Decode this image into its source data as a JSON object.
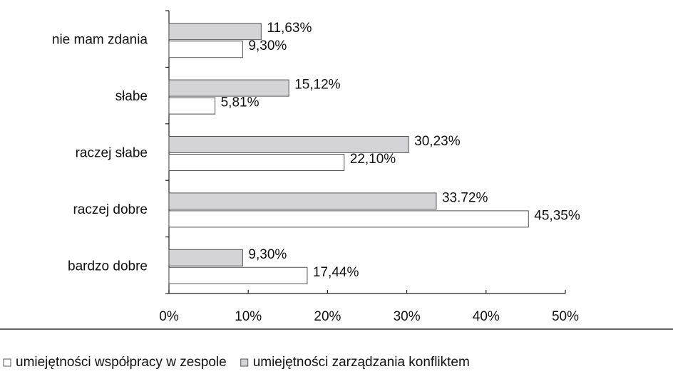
{
  "chart_data": {
    "type": "bar",
    "orientation": "horizontal",
    "categories": [
      "nie mam zdania",
      "słabe",
      "raczej słabe",
      "raczej dobre",
      "bardzo dobre"
    ],
    "series": [
      {
        "name": "umiejętności współpracy w zespole",
        "color": "#ffffff",
        "values": [
          9.3,
          5.81,
          22.1,
          45.35,
          17.44
        ],
        "value_labels": [
          "9,30%",
          "5,81%",
          "22,10%",
          "45,35%",
          "17,44%"
        ]
      },
      {
        "name": "umiejętności zarządzania konfliktem",
        "color": "#d4d4d8",
        "values": [
          11.63,
          15.12,
          30.23,
          33.72,
          9.3
        ],
        "value_labels": [
          "11,63%",
          "15,12%",
          "30,23%",
          "33.72%",
          "9,30%"
        ]
      }
    ],
    "xlim": [
      0,
      50
    ],
    "xticks": [
      {
        "value": 0,
        "label": "0%"
      },
      {
        "value": 10,
        "label": "10%"
      },
      {
        "value": 20,
        "label": "20%"
      },
      {
        "value": 30,
        "label": "30%"
      },
      {
        "value": 40,
        "label": "40%"
      },
      {
        "value": 50,
        "label": "50%"
      }
    ],
    "legend": "bottom"
  }
}
